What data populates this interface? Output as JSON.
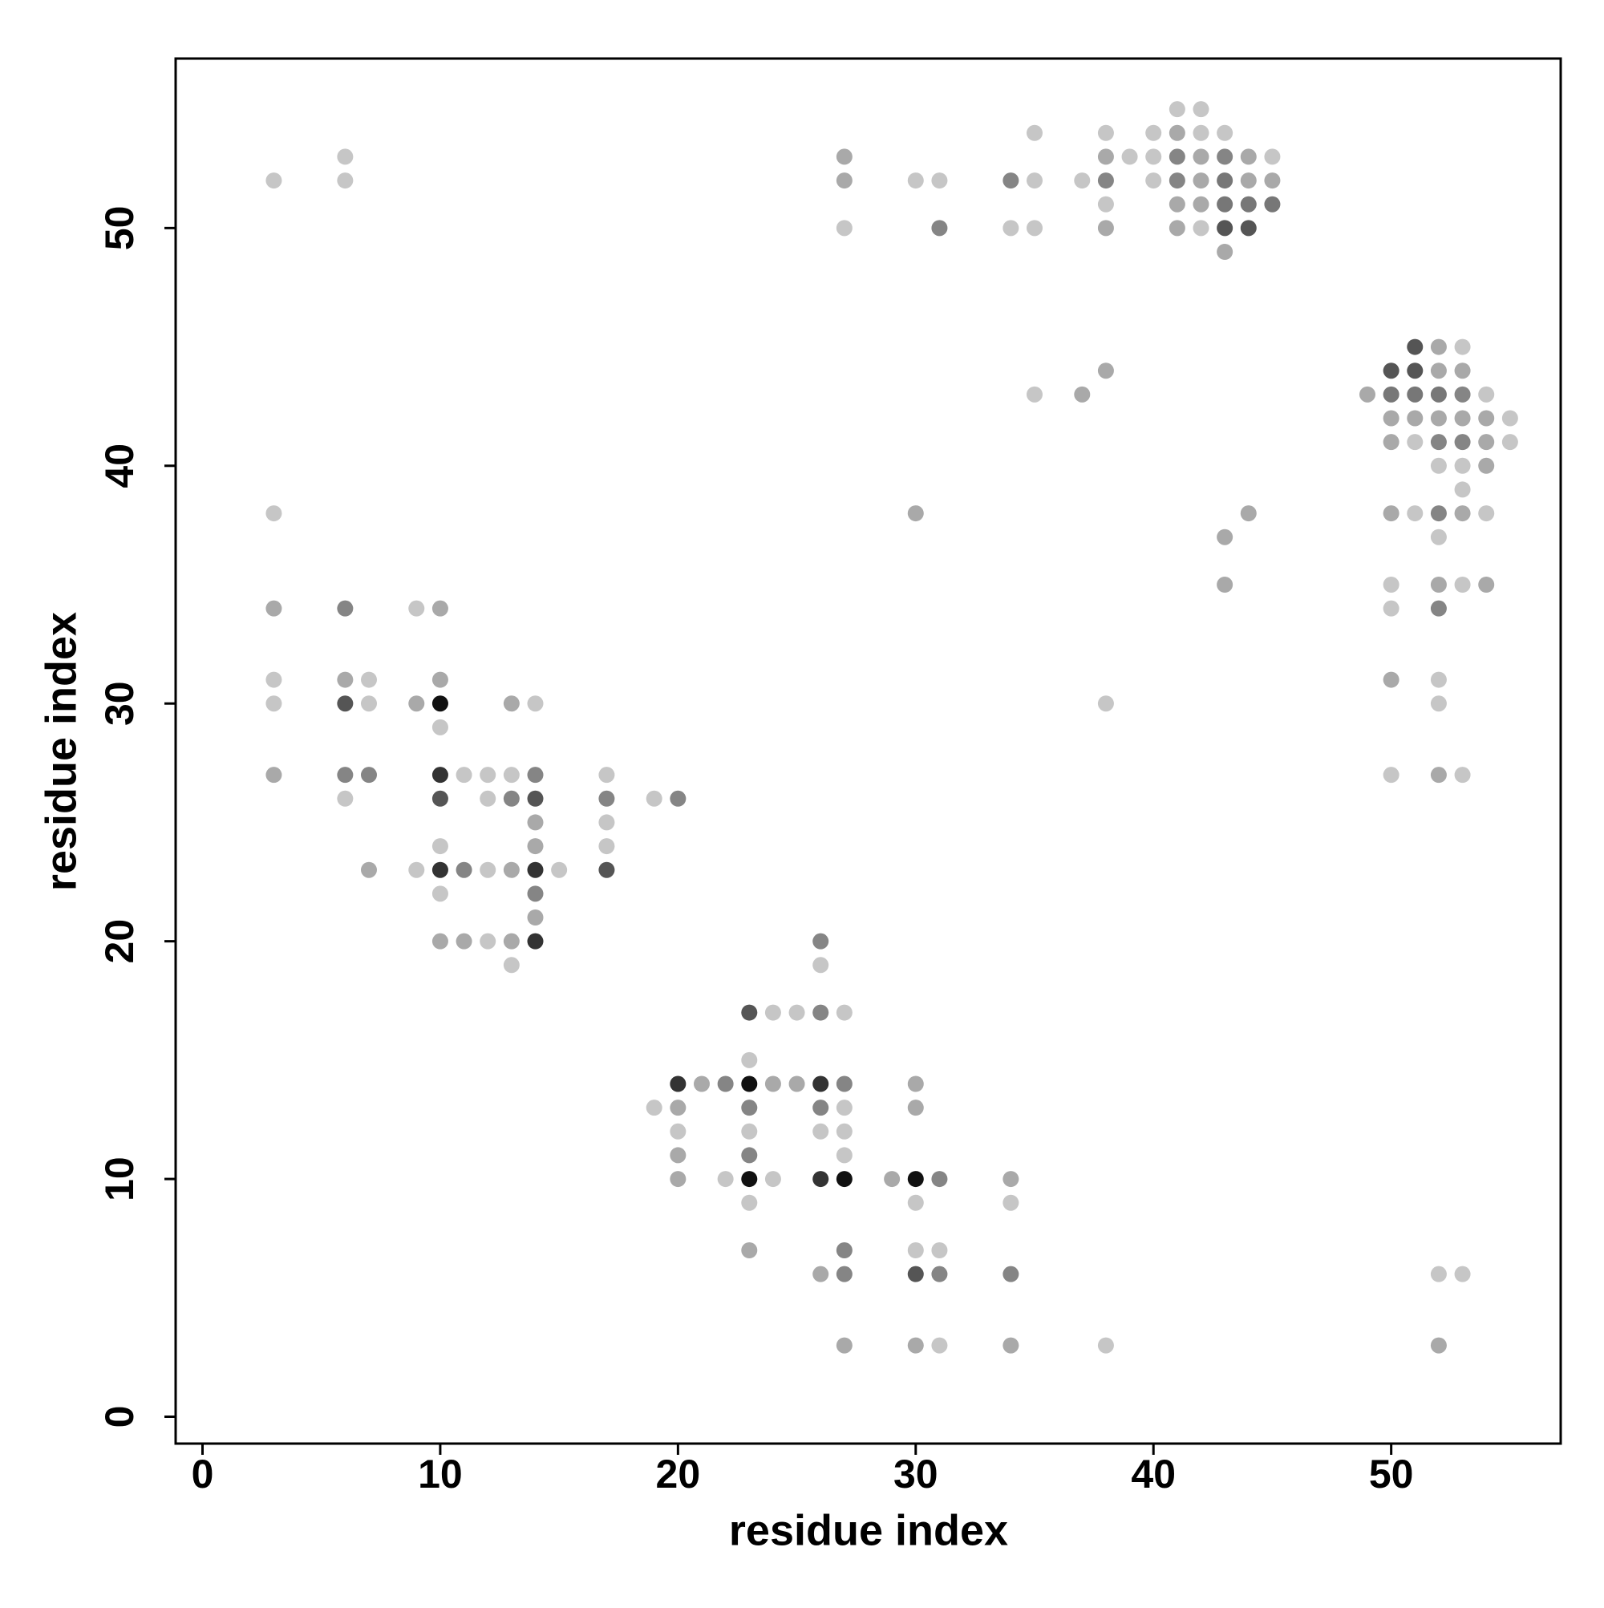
{
  "chart_data": {
    "type": "scatter",
    "x_label": "residue index",
    "y_label": "residue index",
    "x": [
      3,
      3,
      3,
      3,
      3,
      3,
      6,
      6,
      6,
      6,
      6,
      6,
      6,
      7,
      7,
      7,
      7,
      9,
      9,
      9,
      10,
      10,
      10,
      10,
      10,
      10,
      10,
      10,
      10,
      10,
      11,
      11,
      11,
      12,
      12,
      12,
      12,
      13,
      13,
      13,
      13,
      13,
      13,
      14,
      14,
      14,
      14,
      14,
      14,
      14,
      14,
      14,
      15,
      17,
      17,
      17,
      17,
      17,
      19,
      19,
      20,
      20,
      20,
      20,
      20,
      20,
      21,
      22,
      22,
      23,
      23,
      23,
      23,
      23,
      23,
      23,
      23,
      23,
      24,
      24,
      24,
      25,
      25,
      26,
      26,
      26,
      26,
      26,
      26,
      26,
      26,
      27,
      27,
      27,
      27,
      27,
      27,
      27,
      27,
      27,
      27,
      27,
      27,
      29,
      30,
      30,
      30,
      30,
      30,
      30,
      30,
      30,
      30,
      31,
      31,
      31,
      31,
      31,
      31,
      34,
      34,
      34,
      34,
      34,
      34,
      35,
      35,
      35,
      35,
      37,
      37,
      38,
      38,
      38,
      38,
      38,
      38,
      38,
      38,
      39,
      40,
      40,
      40,
      41,
      41,
      41,
      41,
      41,
      41,
      42,
      42,
      42,
      42,
      42,
      42,
      43,
      43,
      43,
      43,
      43,
      43,
      43,
      43,
      44,
      44,
      44,
      44,
      44,
      45,
      45,
      45,
      49,
      50,
      50,
      50,
      50,
      50,
      50,
      50,
      50,
      50,
      51,
      51,
      51,
      51,
      51,
      51,
      52,
      52,
      52,
      52,
      52,
      52,
      52,
      52,
      52,
      52,
      52,
      52,
      52,
      52,
      52,
      53,
      53,
      53,
      53,
      53,
      53,
      53,
      53,
      53,
      53,
      53,
      54,
      54,
      54,
      54,
      54,
      54,
      55,
      55
    ],
    "values": [
      52,
      38,
      34,
      31,
      30,
      27,
      53,
      52,
      34,
      31,
      30,
      27,
      26,
      31,
      30,
      27,
      23,
      34,
      30,
      23,
      34,
      31,
      30,
      29,
      27,
      26,
      24,
      23,
      22,
      20,
      27,
      23,
      20,
      27,
      26,
      23,
      20,
      30,
      27,
      26,
      23,
      20,
      19,
      30,
      27,
      26,
      25,
      24,
      23,
      22,
      21,
      20,
      23,
      27,
      26,
      25,
      24,
      23,
      26,
      13,
      26,
      14,
      13,
      12,
      11,
      10,
      14,
      14,
      10,
      17,
      15,
      14,
      13,
      12,
      11,
      10,
      9,
      7,
      17,
      14,
      10,
      17,
      14,
      20,
      19,
      17,
      14,
      13,
      12,
      10,
      6,
      53,
      52,
      50,
      17,
      14,
      13,
      12,
      11,
      10,
      7,
      6,
      3,
      10,
      52,
      38,
      14,
      13,
      10,
      9,
      7,
      6,
      3,
      52,
      50,
      10,
      7,
      6,
      3,
      52,
      50,
      10,
      9,
      6,
      3,
      54,
      52,
      50,
      43,
      52,
      43,
      54,
      53,
      52,
      51,
      50,
      44,
      30,
      3,
      53,
      54,
      53,
      52,
      55,
      54,
      53,
      52,
      51,
      50,
      55,
      54,
      53,
      52,
      51,
      50,
      54,
      53,
      52,
      51,
      50,
      49,
      37,
      35,
      53,
      52,
      51,
      50,
      38,
      53,
      52,
      51,
      43,
      44,
      43,
      42,
      41,
      38,
      35,
      34,
      31,
      27,
      45,
      44,
      43,
      42,
      41,
      38,
      45,
      44,
      43,
      42,
      41,
      40,
      38,
      37,
      35,
      34,
      31,
      30,
      27,
      6,
      3,
      45,
      44,
      43,
      42,
      41,
      40,
      39,
      38,
      35,
      27,
      6,
      43,
      42,
      41,
      40,
      38,
      35,
      42,
      41
    ],
    "colors": [
      "#c6c6c6",
      "#c6c6c6",
      "#a9a9a9",
      "#c6c6c6",
      "#c6c6c6",
      "#a9a9a9",
      "#c6c6c6",
      "#c6c6c6",
      "#858585",
      "#a9a9a9",
      "#555555",
      "#858585",
      "#c6c6c6",
      "#c6c6c6",
      "#c6c6c6",
      "#858585",
      "#a9a9a9",
      "#c6c6c6",
      "#a9a9a9",
      "#c6c6c6",
      "#a9a9a9",
      "#a9a9a9",
      "#111111",
      "#c6c6c6",
      "#333333",
      "#555555",
      "#c6c6c6",
      "#333333",
      "#c6c6c6",
      "#a9a9a9",
      "#c6c6c6",
      "#858585",
      "#a9a9a9",
      "#c6c6c6",
      "#c6c6c6",
      "#c6c6c6",
      "#c6c6c6",
      "#a9a9a9",
      "#c6c6c6",
      "#858585",
      "#a9a9a9",
      "#a9a9a9",
      "#c6c6c6",
      "#c6c6c6",
      "#858585",
      "#555555",
      "#a9a9a9",
      "#a9a9a9",
      "#333333",
      "#858585",
      "#a9a9a9",
      "#333333",
      "#c6c6c6",
      "#c6c6c6",
      "#858585",
      "#c6c6c6",
      "#c6c6c6",
      "#555555",
      "#c6c6c6",
      "#c6c6c6",
      "#858585",
      "#333333",
      "#a9a9a9",
      "#c6c6c6",
      "#a9a9a9",
      "#a9a9a9",
      "#a9a9a9",
      "#858585",
      "#c6c6c6",
      "#555555",
      "#c6c6c6",
      "#111111",
      "#858585",
      "#c6c6c6",
      "#858585",
      "#111111",
      "#c6c6c6",
      "#a9a9a9",
      "#c6c6c6",
      "#a9a9a9",
      "#c6c6c6",
      "#c6c6c6",
      "#a9a9a9",
      "#858585",
      "#c6c6c6",
      "#858585",
      "#333333",
      "#858585",
      "#c6c6c6",
      "#333333",
      "#a9a9a9",
      "#a9a9a9",
      "#a9a9a9",
      "#c6c6c6",
      "#c6c6c6",
      "#858585",
      "#c6c6c6",
      "#c6c6c6",
      "#c6c6c6",
      "#111111",
      "#858585",
      "#858585",
      "#a9a9a9",
      "#a9a9a9",
      "#c6c6c6",
      "#a9a9a9",
      "#a9a9a9",
      "#a9a9a9",
      "#111111",
      "#c6c6c6",
      "#c6c6c6",
      "#555555",
      "#a9a9a9",
      "#c6c6c6",
      "#858585",
      "#858585",
      "#c6c6c6",
      "#858585",
      "#c6c6c6",
      "#858585",
      "#c6c6c6",
      "#a9a9a9",
      "#c6c6c6",
      "#858585",
      "#a9a9a9",
      "#c6c6c6",
      "#c6c6c6",
      "#c6c6c6",
      "#c6c6c6",
      "#c6c6c6",
      "#a9a9a9",
      "#c6c6c6",
      "#a9a9a9",
      "#858585",
      "#c6c6c6",
      "#a9a9a9",
      "#a9a9a9",
      "#c6c6c6",
      "#c6c6c6",
      "#c6c6c6",
      "#c6c6c6",
      "#c6c6c6",
      "#c6c6c6",
      "#c6c6c6",
      "#a9a9a9",
      "#858585",
      "#858585",
      "#a9a9a9",
      "#a9a9a9",
      "#c6c6c6",
      "#c6c6c6",
      "#a9a9a9",
      "#a9a9a9",
      "#a9a9a9",
      "#c6c6c6",
      "#c6c6c6",
      "#858585",
      "#777777",
      "#777777",
      "#555555",
      "#a9a9a9",
      "#a9a9a9",
      "#a9a9a9",
      "#a9a9a9",
      "#a9a9a9",
      "#777777",
      "#555555",
      "#a9a9a9",
      "#c6c6c6",
      "#a9a9a9",
      "#777777",
      "#a9a9a9",
      "#555555",
      "#777777",
      "#a9a9a9",
      "#a9a9a9",
      "#a9a9a9",
      "#c6c6c6",
      "#c6c6c6",
      "#a9a9a9",
      "#c6c6c6",
      "#555555",
      "#555555",
      "#777777",
      "#a9a9a9",
      "#c6c6c6",
      "#c6c6c6",
      "#a9a9a9",
      "#a9a9a9",
      "#777777",
      "#a9a9a9",
      "#858585",
      "#c6c6c6",
      "#858585",
      "#c6c6c6",
      "#a9a9a9",
      "#858585",
      "#c6c6c6",
      "#c6c6c6",
      "#a9a9a9",
      "#c6c6c6",
      "#a9a9a9",
      "#c6c6c6",
      "#a9a9a9",
      "#858585",
      "#a9a9a9",
      "#858585",
      "#c6c6c6",
      "#c6c6c6",
      "#a9a9a9",
      "#c6c6c6",
      "#c6c6c6",
      "#c6c6c6",
      "#c6c6c6",
      "#a9a9a9",
      "#a9a9a9",
      "#a9a9a9",
      "#c6c6c6",
      "#a9a9a9",
      "#c6c6c6",
      "#c6c6c6"
    ],
    "xlim": [
      -1.13,
      57.13
    ],
    "ylim": [
      -1.13,
      57.13
    ],
    "xticks": [
      0,
      10,
      20,
      30,
      40,
      50
    ],
    "yticks": [
      0,
      10,
      20,
      30,
      40,
      50
    ]
  }
}
